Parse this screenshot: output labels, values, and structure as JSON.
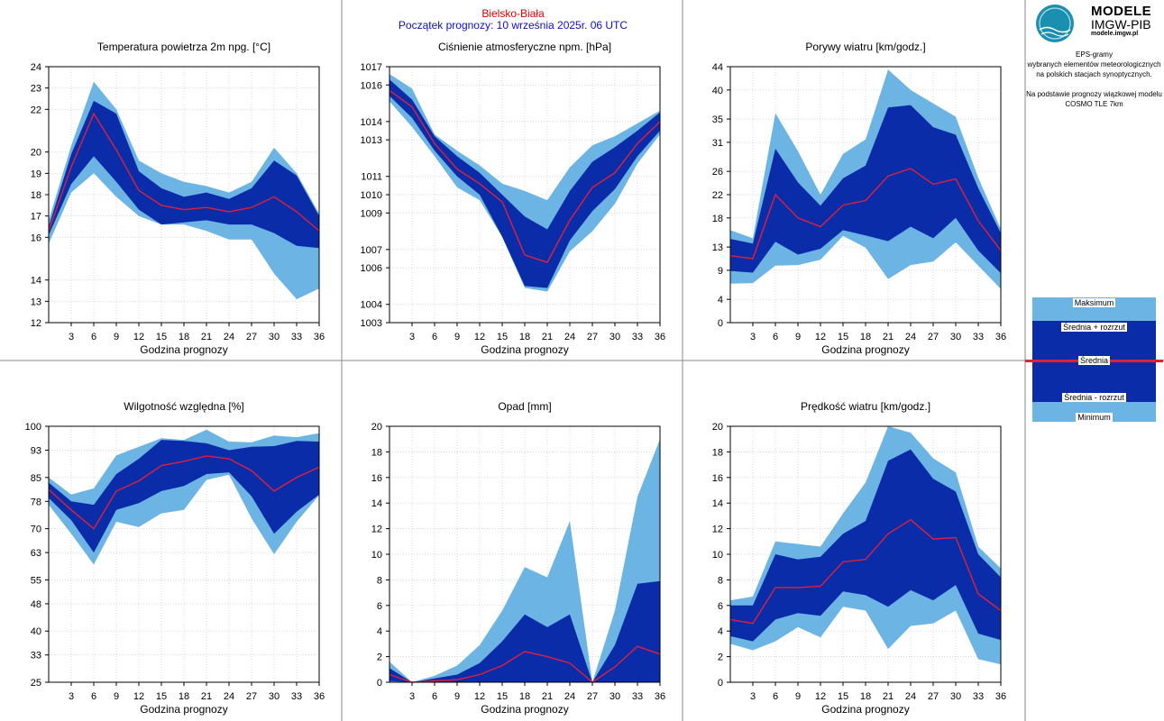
{
  "header": {
    "station": "Bielsko-Biała",
    "forecast_start": "Początek prognozy: 10 września 2025r. 06 UTC"
  },
  "brand": {
    "logo_text": "IMGW",
    "title": "MODELE",
    "org": "IMGW-PIB",
    "url": "modele.imgw.pl",
    "desc_lines": [
      "EPS-gramy",
      "wybranych elementów meteorologicznych",
      "na polskich stacjach  synoptycznych."
    ],
    "basis_lines": [
      "Na podstawie prognozy wiązkowej modelu",
      "COSMO TLE 7km"
    ]
  },
  "legend": {
    "max": "Maksimum",
    "mean_plus": "Średnia + rozrzut",
    "mean": "Średnia",
    "mean_minus": "Średnia - rozrzut",
    "min": "Minimum"
  },
  "colors": {
    "outer_band": "#6cb4e4",
    "inner_band": "#0a2ca8",
    "mean_line": "#e0203a",
    "frame": "#888888"
  },
  "chart_data": [
    {
      "type": "area",
      "title": "Temperatura powietrza 2m npg. [°C]",
      "xlabel": "Godzina prognozy",
      "x": [
        0,
        3,
        6,
        9,
        12,
        15,
        18,
        21,
        24,
        27,
        30,
        33,
        36
      ],
      "xticks": [
        3,
        6,
        9,
        12,
        15,
        18,
        21,
        24,
        27,
        30,
        33,
        36
      ],
      "ylim": [
        12,
        24
      ],
      "yticks": [
        12,
        13,
        14,
        16,
        17,
        18,
        19,
        20,
        22,
        23,
        24
      ],
      "series": {
        "max": [
          16.8,
          20.3,
          23.3,
          22.0,
          19.6,
          19.0,
          18.6,
          18.4,
          18.1,
          18.6,
          20.2,
          19.0,
          17.1
        ],
        "mean_plus": [
          16.5,
          19.9,
          22.4,
          21.8,
          19.1,
          18.3,
          17.9,
          18.1,
          17.8,
          18.3,
          19.6,
          18.9,
          17.0
        ],
        "mean": [
          16.3,
          19.3,
          21.8,
          20.1,
          18.2,
          17.5,
          17.3,
          17.4,
          17.2,
          17.4,
          17.9,
          17.2,
          16.3
        ],
        "mean_minus": [
          16.1,
          18.5,
          19.8,
          18.6,
          17.3,
          16.6,
          16.7,
          16.8,
          16.6,
          16.6,
          16.2,
          15.6,
          15.5
        ],
        "min": [
          15.7,
          18.1,
          19.0,
          17.9,
          17.0,
          16.6,
          16.6,
          16.3,
          15.9,
          15.9,
          14.3,
          13.1,
          13.6
        ]
      }
    },
    {
      "type": "area",
      "title": "Ciśnienie atmosferyczne npm. [hPa]",
      "xlabel": "Godzina prognozy",
      "x": [
        0,
        3,
        6,
        9,
        12,
        15,
        18,
        21,
        24,
        27,
        30,
        33,
        36
      ],
      "xticks": [
        3,
        6,
        9,
        12,
        15,
        18,
        21,
        24,
        27,
        30,
        33,
        36
      ],
      "ylim": [
        1003,
        1017
      ],
      "yticks": [
        1003,
        1004,
        1006,
        1007,
        1009,
        1010,
        1011,
        1013,
        1014,
        1016,
        1017
      ],
      "series": {
        "max": [
          1016.6,
          1015.8,
          1013.3,
          1012.4,
          1011.6,
          1010.6,
          1010.2,
          1009.7,
          1011.5,
          1012.7,
          1013.2,
          1013.9,
          1014.6
        ],
        "mean_plus": [
          1016.3,
          1015.2,
          1013.2,
          1012.1,
          1011.2,
          1010.0,
          1008.8,
          1008.1,
          1010.2,
          1011.8,
          1012.6,
          1013.5,
          1014.5
        ],
        "mean": [
          1015.7,
          1014.8,
          1012.8,
          1011.4,
          1010.6,
          1009.6,
          1006.7,
          1006.3,
          1008.6,
          1010.4,
          1011.2,
          1012.8,
          1014.0
        ],
        "mean_minus": [
          1015.4,
          1014.2,
          1012.4,
          1011.0,
          1010.0,
          1007.7,
          1005.0,
          1004.9,
          1007.5,
          1009.1,
          1010.3,
          1012.1,
          1013.5
        ],
        "min": [
          1015.1,
          1013.7,
          1012.1,
          1010.4,
          1009.7,
          1007.7,
          1004.9,
          1004.7,
          1006.9,
          1008.0,
          1009.5,
          1011.7,
          1013.3
        ]
      }
    },
    {
      "type": "area",
      "title": "Porywy wiatru [km/godz.]",
      "xlabel": "Godzina prognozy",
      "x": [
        0,
        3,
        6,
        9,
        12,
        15,
        18,
        21,
        24,
        27,
        30,
        33,
        36
      ],
      "xticks": [
        3,
        6,
        9,
        12,
        15,
        18,
        21,
        24,
        27,
        30,
        33,
        36
      ],
      "ylim": [
        0,
        44
      ],
      "yticks": [
        0,
        4,
        9,
        13,
        18,
        22,
        26,
        31,
        35,
        40,
        44
      ],
      "series": {
        "max": [
          15.9,
          14.5,
          36.0,
          29.5,
          22.0,
          29.0,
          31.5,
          43.5,
          40.0,
          37.7,
          35.4,
          24.9,
          16.1
        ],
        "mean_plus": [
          14.4,
          13.6,
          29.9,
          24.1,
          20.1,
          24.8,
          27.0,
          37.0,
          37.4,
          33.6,
          32.3,
          23.1,
          15.4
        ],
        "mean": [
          11.5,
          11.0,
          22.0,
          18.0,
          16.5,
          20.2,
          21.0,
          25.2,
          26.5,
          23.8,
          24.7,
          17.5,
          12.4
        ],
        "mean_minus": [
          8.9,
          8.6,
          13.9,
          11.7,
          12.7,
          15.9,
          15.0,
          14.0,
          16.5,
          14.5,
          18.0,
          12.4,
          8.5
        ],
        "min": [
          6.7,
          6.8,
          9.8,
          9.9,
          10.8,
          14.9,
          12.9,
          7.5,
          9.9,
          10.5,
          13.8,
          9.8,
          5.8
        ]
      }
    },
    {
      "type": "area",
      "title": "Wilgotność względna [%]",
      "xlabel": "Godzina prognozy",
      "x": [
        0,
        3,
        6,
        9,
        12,
        15,
        18,
        21,
        24,
        27,
        30,
        33,
        36
      ],
      "xticks": [
        3,
        6,
        9,
        12,
        15,
        18,
        21,
        24,
        27,
        30,
        33,
        36
      ],
      "ylim": [
        25,
        100
      ],
      "yticks": [
        25,
        33,
        40,
        48,
        55,
        63,
        70,
        78,
        85,
        93,
        100
      ],
      "series": {
        "max": [
          85.0,
          80.0,
          81.8,
          91.5,
          94.0,
          96.5,
          96.0,
          99.0,
          95.5,
          95.3,
          97.3,
          96.8,
          98.0
        ],
        "mean_plus": [
          83.5,
          78.0,
          77.0,
          86.0,
          90.5,
          96.0,
          95.7,
          95.0,
          93.0,
          94.0,
          94.2,
          95.7,
          95.5
        ],
        "mean": [
          81.5,
          75.5,
          70.0,
          81.0,
          84.0,
          88.5,
          89.7,
          91.3,
          90.5,
          87.0,
          81.0,
          85.0,
          88.0
        ],
        "mean_minus": [
          79.0,
          72.5,
          63.0,
          75.5,
          77.5,
          81.0,
          82.5,
          86.0,
          86.5,
          79.5,
          68.5,
          75.0,
          80.0
        ],
        "min": [
          77.0,
          68.5,
          59.5,
          72.0,
          70.5,
          74.5,
          75.5,
          84.3,
          85.8,
          73.0,
          62.5,
          72.0,
          79.8
        ]
      }
    },
    {
      "type": "area",
      "title": "Opad [mm]",
      "xlabel": "Godzina prognozy",
      "x": [
        0,
        3,
        6,
        9,
        12,
        15,
        18,
        21,
        24,
        27,
        30,
        33,
        36
      ],
      "xticks": [
        3,
        6,
        9,
        12,
        15,
        18,
        21,
        24,
        27,
        30,
        33,
        36
      ],
      "ylim": [
        0,
        20
      ],
      "yticks": [
        0,
        2,
        4,
        6,
        8,
        10,
        12,
        14,
        16,
        18,
        20
      ],
      "series": {
        "max": [
          1.6,
          0.0,
          0.5,
          1.3,
          2.9,
          5.6,
          9.0,
          8.2,
          12.6,
          0.0,
          5.6,
          14.5,
          19.0
        ],
        "mean_plus": [
          1.1,
          0.0,
          0.3,
          0.6,
          1.5,
          3.2,
          5.3,
          4.3,
          5.3,
          0.0,
          2.9,
          7.7,
          7.9
        ],
        "mean": [
          0.6,
          0.0,
          0.1,
          0.2,
          0.6,
          1.3,
          2.4,
          2.0,
          1.5,
          0.0,
          1.2,
          2.8,
          2.2
        ],
        "mean_minus": [
          0.1,
          0.0,
          0.0,
          0.0,
          0.0,
          0.0,
          0.0,
          0.0,
          0.0,
          0.0,
          0.0,
          0.0,
          0.0
        ],
        "min": [
          0.0,
          0.0,
          0.0,
          0.0,
          0.0,
          0.0,
          0.0,
          0.0,
          0.0,
          0.0,
          0.0,
          0.0,
          0.0
        ]
      }
    },
    {
      "type": "area",
      "title": "Prędkość wiatru [km/godz.]",
      "xlabel": "Godzina prognozy",
      "x": [
        0,
        3,
        6,
        9,
        12,
        15,
        18,
        21,
        24,
        27,
        30,
        33,
        36
      ],
      "xticks": [
        3,
        6,
        9,
        12,
        15,
        18,
        21,
        24,
        27,
        30,
        33,
        36
      ],
      "ylim": [
        0,
        20
      ],
      "yticks": [
        0,
        2,
        4,
        6,
        8,
        10,
        12,
        14,
        16,
        18,
        20
      ],
      "series": {
        "max": [
          6.4,
          6.7,
          11.0,
          10.8,
          10.6,
          13.2,
          15.6,
          20.0,
          19.5,
          17.5,
          16.4,
          10.6,
          8.9
        ],
        "mean_plus": [
          6.0,
          6.0,
          10.0,
          9.6,
          9.8,
          11.6,
          12.6,
          17.3,
          18.2,
          15.9,
          14.9,
          10.0,
          8.2
        ],
        "mean": [
          4.9,
          4.6,
          7.4,
          7.4,
          7.5,
          9.4,
          9.6,
          11.6,
          12.7,
          11.2,
          11.3,
          6.9,
          5.6
        ],
        "mean_minus": [
          3.6,
          3.2,
          4.9,
          5.4,
          5.2,
          7.1,
          6.8,
          5.9,
          7.2,
          6.4,
          7.6,
          3.8,
          3.3
        ],
        "min": [
          3.0,
          2.5,
          3.2,
          4.3,
          3.5,
          5.9,
          5.6,
          2.6,
          4.4,
          4.6,
          5.6,
          1.8,
          1.4
        ]
      }
    }
  ]
}
